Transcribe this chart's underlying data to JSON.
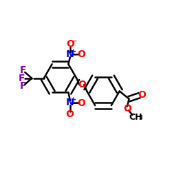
{
  "bg_color": "#ffffff",
  "bond_color": "#000000",
  "bond_lw": 1.8,
  "dbo": 0.018,
  "atom_colors": {
    "O": "#ff0000",
    "N": "#0000ff",
    "F": "#8800bb",
    "C": "#000000"
  },
  "fs": 10,
  "fs_small": 7,
  "fs_sub": 6
}
